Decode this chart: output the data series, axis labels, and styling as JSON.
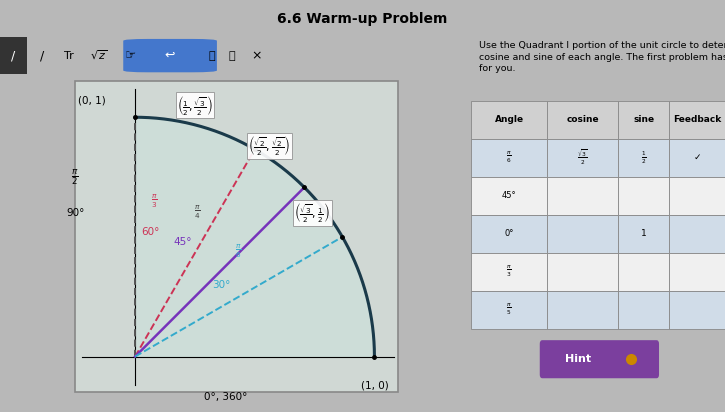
{
  "title": "6.6 Warm-up Problem",
  "instruction": "Use the Quadrant I portion of the unit circle to determine the\ncosine and sine of each angle. The first problem has been done\nfor you.",
  "bg_color": "#b8b8b8",
  "toolbar_bg": "#c0c0c0",
  "circle_panel_bg": "#c8c8c8",
  "circle_fill": "#cce0da",
  "circle_arc_color": "#1a3a4a",
  "angle_lines": [
    {
      "deg": 90,
      "color": "#555555",
      "style": "dashed"
    },
    {
      "deg": 60,
      "color": "#cc3355",
      "style": "dashed"
    },
    {
      "deg": 45,
      "color": "#7733bb",
      "style": "solid"
    },
    {
      "deg": 30,
      "color": "#33aacc",
      "style": "dashed"
    }
  ],
  "table_header_bg": "#d8d8d8",
  "table_row_bgs": [
    "#d0dce8",
    "#f0f0f0",
    "#d0dce8",
    "#f0f0f0",
    "#d0dce8"
  ],
  "table_headers": [
    "Angle",
    "cosine",
    "sine",
    "Feedback"
  ],
  "table_rows": [
    [
      "π/6",
      "√3/2",
      "1/2",
      "✓"
    ],
    [
      "45°",
      "",
      "",
      ""
    ],
    [
      "0°",
      "",
      "1",
      ""
    ],
    [
      "π/3",
      "",
      "",
      ""
    ],
    [
      "π/5",
      "",
      "",
      ""
    ]
  ],
  "hint_color": "#7b3f9e",
  "hint_text": "Hint",
  "hint_dot_color": "#cc8800"
}
